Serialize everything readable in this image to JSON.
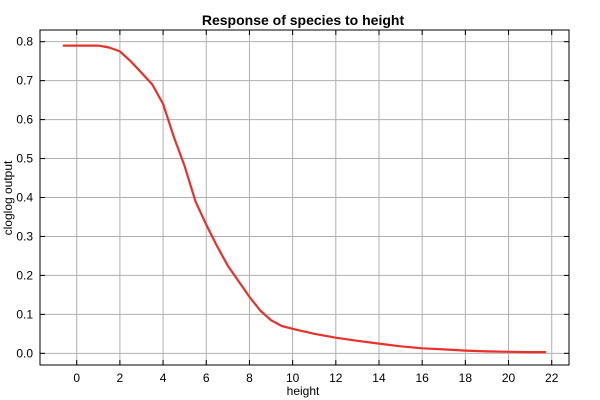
{
  "chart_data": {
    "type": "line",
    "title": "Response of species to height",
    "xlabel": "height",
    "ylabel": "cloglog output",
    "xlim": [
      -1.7,
      22.8
    ],
    "ylim": [
      -0.03,
      0.83
    ],
    "xticks": [
      0,
      2,
      4,
      6,
      8,
      10,
      12,
      14,
      16,
      18,
      20,
      22
    ],
    "yticks": [
      0.0,
      0.1,
      0.2,
      0.3,
      0.4,
      0.5,
      0.6,
      0.7,
      0.8
    ],
    "ytick_labels": [
      "0.0",
      "0.1",
      "0.2",
      "0.3",
      "0.4",
      "0.5",
      "0.6",
      "0.7",
      "0.8"
    ],
    "grid": true,
    "series": [
      {
        "color": "#e8312a",
        "x": [
          -0.6,
          0.0,
          0.5,
          1.0,
          1.5,
          2.0,
          2.5,
          3.0,
          3.5,
          4.0,
          4.5,
          5.0,
          5.5,
          6.0,
          6.5,
          7.0,
          7.5,
          8.0,
          8.5,
          9.0,
          9.5,
          10.0,
          11.0,
          12.0,
          13.0,
          14.0,
          15.0,
          16.0,
          17.0,
          18.0,
          19.0,
          20.0,
          21.0,
          21.7
        ],
        "values": [
          0.79,
          0.79,
          0.79,
          0.79,
          0.785,
          0.775,
          0.75,
          0.72,
          0.69,
          0.64,
          0.555,
          0.48,
          0.39,
          0.33,
          0.275,
          0.225,
          0.185,
          0.145,
          0.11,
          0.085,
          0.07,
          0.063,
          0.05,
          0.04,
          0.032,
          0.025,
          0.018,
          0.013,
          0.01,
          0.007,
          0.005,
          0.004,
          0.003,
          0.003
        ]
      }
    ]
  }
}
